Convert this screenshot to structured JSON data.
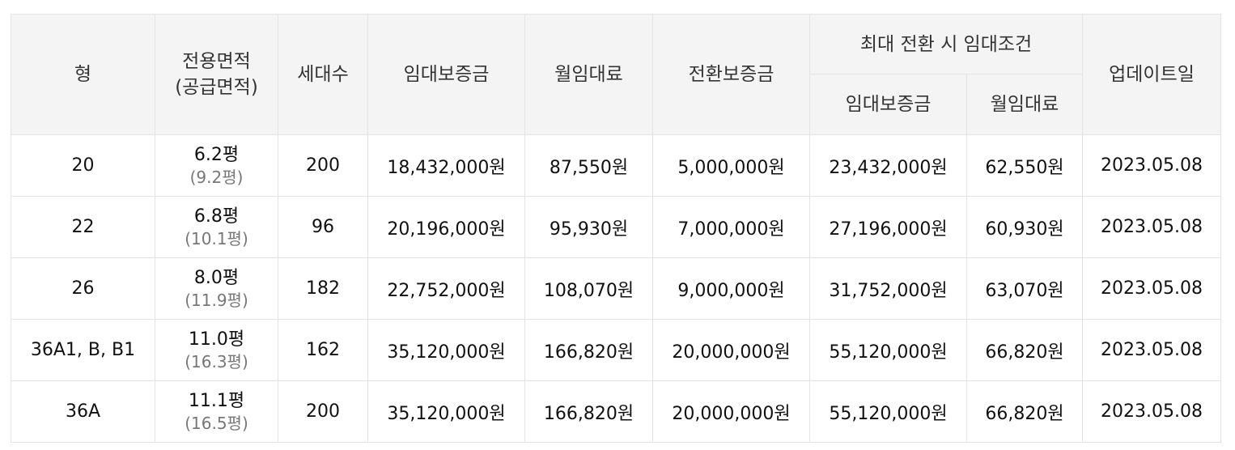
{
  "headers": {
    "type": "형",
    "area_line1": "전용면적",
    "area_line2": "(공급면적)",
    "households": "세대수",
    "deposit": "임대보증금",
    "monthly": "월임대료",
    "conversion_deposit": "전환보증금",
    "max_conversion_group": "최대 전환 시 임대조건",
    "max_deposit": "임대보증금",
    "max_monthly": "월임대료",
    "updated": "업데이트일"
  },
  "rows": [
    {
      "type": "20",
      "exclusive_area": "6.2평",
      "supply_area": "(9.2평)",
      "households": "200",
      "deposit": "18,432,000원",
      "monthly": "87,550원",
      "conversion_deposit": "5,000,000원",
      "max_deposit": "23,432,000원",
      "max_monthly": "62,550원",
      "updated": "2023.05.08"
    },
    {
      "type": "22",
      "exclusive_area": "6.8평",
      "supply_area": "(10.1평)",
      "households": "96",
      "deposit": "20,196,000원",
      "monthly": "95,930원",
      "conversion_deposit": "7,000,000원",
      "max_deposit": "27,196,000원",
      "max_monthly": "60,930원",
      "updated": "2023.05.08"
    },
    {
      "type": "26",
      "exclusive_area": "8.0평",
      "supply_area": "(11.9평)",
      "households": "182",
      "deposit": "22,752,000원",
      "monthly": "108,070원",
      "conversion_deposit": "9,000,000원",
      "max_deposit": "31,752,000원",
      "max_monthly": "63,070원",
      "updated": "2023.05.08"
    },
    {
      "type": "36A1, B, B1",
      "exclusive_area": "11.0평",
      "supply_area": "(16.3평)",
      "households": "162",
      "deposit": "35,120,000원",
      "monthly": "166,820원",
      "conversion_deposit": "20,000,000원",
      "max_deposit": "55,120,000원",
      "max_monthly": "66,820원",
      "updated": "2023.05.08"
    },
    {
      "type": "36A",
      "exclusive_area": "11.1평",
      "supply_area": "(16.5평)",
      "households": "200",
      "deposit": "35,120,000원",
      "monthly": "166,820원",
      "conversion_deposit": "20,000,000원",
      "max_deposit": "55,120,000원",
      "max_monthly": "66,820원",
      "updated": "2023.05.08"
    }
  ]
}
